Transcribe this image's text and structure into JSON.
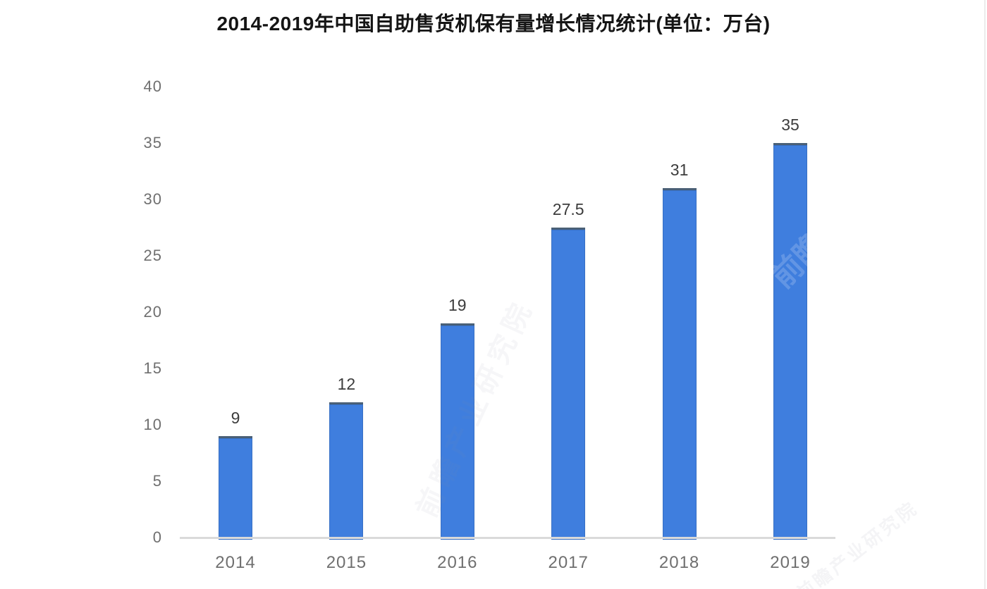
{
  "title": "2014-2019年中国自助售货机保有量增长情况统计(单位：万台)",
  "chart_data": {
    "type": "bar",
    "title": "2014-2019年中国自助售货机保有量增长情况统计(单位：万台)",
    "categories": [
      "2014",
      "2015",
      "2016",
      "2017",
      "2018",
      "2019"
    ],
    "values": [
      9,
      12,
      19,
      27.5,
      31,
      35
    ],
    "value_labels": [
      "9",
      "12",
      "19",
      "27.5",
      "31",
      "35"
    ],
    "unit": "万台",
    "xlabel": "",
    "ylabel": "",
    "ylim": [
      0,
      40
    ],
    "yticks": [
      0,
      5,
      10,
      15,
      20,
      25,
      30,
      35,
      40
    ],
    "grid": false,
    "legend": "none",
    "series_color": "#3f7ede"
  },
  "colors": {
    "bar": "#3f7ede",
    "bar_top_edge": "#4a6077",
    "axis_line": "#dadada",
    "tick_label": "#6f6f6f",
    "category_label": "#6f6f6f",
    "value_label": "#3c3c3c",
    "title": "#151515",
    "watermark": "#8a93a6"
  },
  "watermark": {
    "brand": "前瞻产业研究院",
    "mark": "前瞻"
  }
}
